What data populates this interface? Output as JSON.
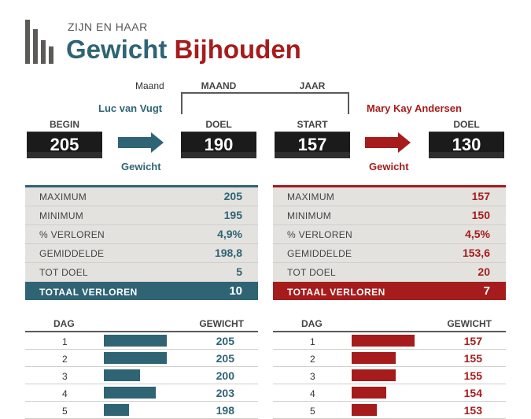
{
  "header": {
    "kicker": "ZIJN EN HAAR",
    "title_part1": "Gewicht",
    "title_part2": "Bijhouden"
  },
  "colors": {
    "teal": "#2f6475",
    "red": "#a61c1c",
    "gray": "#5b5a56"
  },
  "period": {
    "label": "Maand",
    "month_label": "MAAND",
    "year_label": "JAAR"
  },
  "person1": {
    "name": "Luc van Vugt",
    "begin_label": "BEGIN",
    "begin_value": "205",
    "goal_label": "DOEL",
    "goal_value": "190",
    "arrow_label": "Gewicht",
    "stats": [
      {
        "label": "MAXIMUM",
        "value": "205"
      },
      {
        "label": "MINIMUM",
        "value": "195"
      },
      {
        "label": "% VERLOREN",
        "value": "4,9%"
      },
      {
        "label": "GEMIDDELDE",
        "value": "198,8"
      },
      {
        "label": "TOT DOEL",
        "value": "5"
      }
    ],
    "total_label": "TOTAAL VERLOREN",
    "total_value": "10",
    "day_header": "DAG",
    "weight_header": "GEWICHT",
    "days": [
      {
        "day": "1",
        "weight": "205",
        "level": 205
      },
      {
        "day": "2",
        "weight": "205",
        "level": 205
      },
      {
        "day": "3",
        "weight": "200",
        "level": 200
      },
      {
        "day": "4",
        "weight": "203",
        "level": 203
      },
      {
        "day": "5",
        "weight": "198",
        "level": 198
      }
    ]
  },
  "person2": {
    "name": "Mary Kay Andersen",
    "start_label": "START",
    "start_value": "157",
    "goal_label": "DOEL",
    "goal_value": "130",
    "arrow_label": "Gewicht",
    "stats": [
      {
        "label": "MAXIMUM",
        "value": "157"
      },
      {
        "label": "MINIMUM",
        "value": "150"
      },
      {
        "label": "% VERLOREN",
        "value": "4,5%"
      },
      {
        "label": "GEMIDDELDE",
        "value": "153,6"
      },
      {
        "label": "TOT DOEL",
        "value": "20"
      }
    ],
    "total_label": "TOTAAL VERLOREN",
    "total_value": "7",
    "day_header": "DAG",
    "weight_header": "GEWICHT",
    "days": [
      {
        "day": "1",
        "weight": "157",
        "level": 157
      },
      {
        "day": "2",
        "weight": "155",
        "level": 155
      },
      {
        "day": "3",
        "weight": "155",
        "level": 155
      },
      {
        "day": "4",
        "weight": "154",
        "level": 154
      },
      {
        "day": "5",
        "weight": "153",
        "level": 153
      }
    ]
  }
}
